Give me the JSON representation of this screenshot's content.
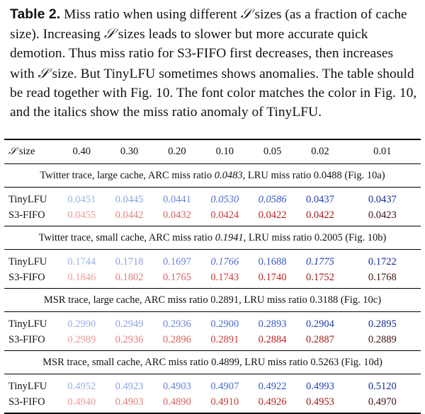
{
  "caption": {
    "label": "Table 2.",
    "parts": [
      " Miss ratio when using different ",
      " sizes (as a fraction of cache size). Increasing ",
      " sizes leads to slower but more accurate quick demotion. Thus miss ratio for S3-FIFO first decreases, then increases with ",
      " size. But TinyLFU sometimes shows anomalies. The table should be read together with Fig. 10. The font color matches the color in Fig. 10, and the italics show the miss ratio anomaly of TinyLFU."
    ],
    "symbol": "𝒮"
  },
  "header": {
    "symbol": "𝒮",
    "size_label": " size",
    "columns": [
      "0.40",
      "0.30",
      "0.20",
      "0.10",
      "0.05",
      "0.02",
      "0.01"
    ]
  },
  "sections": [
    {
      "title_a": "Twitter trace, large cache, ARC miss ratio ",
      "arc": "0.0483",
      "title_b": ", LRU miss ratio 0.0488 (Fig. 10a)",
      "rows": [
        {
          "label": "TinyLFU",
          "values": [
            "0.0451",
            "0.0445",
            "0.0441",
            "0.0530",
            "0.0586",
            "0.0437",
            "0.0437"
          ]
        },
        {
          "label": "S3-FIFO",
          "values": [
            "0.0455",
            "0.0442",
            "0.0432",
            "0.0424",
            "0.0422",
            "0.0422",
            "0.0423"
          ]
        }
      ]
    },
    {
      "title_a": "Twitter trace, small cache, ARC miss ratio ",
      "arc": "0.1941",
      "title_b": ", LRU miss ratio 0.2005 (Fig. 10b)",
      "rows": [
        {
          "label": "TinyLFU",
          "values": [
            "0.1744",
            "0.1718",
            "0.1697",
            "0.1766",
            "0.1688",
            "0.1775",
            "0.1722"
          ]
        },
        {
          "label": "S3-FIFO",
          "values": [
            "0.1846",
            "0.1802",
            "0.1765",
            "0.1743",
            "0.1740",
            "0.1752",
            "0.1768"
          ]
        }
      ]
    },
    {
      "title_a": "MSR trace, large cache, ARC miss ratio ",
      "arc": "0.2891",
      "title_b": ", LRU miss ratio 0.3188 (Fig. 10c)",
      "rows": [
        {
          "label": "TinyLFU",
          "values": [
            "0.2990",
            "0.2949",
            "0.2936",
            "0.2900",
            "0.2893",
            "0.2904",
            "0.2895"
          ]
        },
        {
          "label": "S3-FIFO",
          "values": [
            "0.2989",
            "0.2936",
            "0.2896",
            "0.2891",
            "0.2884",
            "0.2887",
            "0.2889"
          ]
        }
      ]
    },
    {
      "title_a": "MSR trace, small cache, ARC miss ratio ",
      "arc": "0.4899",
      "title_b": ", LRU miss ratio 0.5263 (Fig. 10d)",
      "rows": [
        {
          "label": "TinyLFU",
          "values": [
            "0.4952",
            "0.4923",
            "0.4903",
            "0.4907",
            "0.4922",
            "0.4993",
            "0.5120"
          ]
        },
        {
          "label": "S3-FIFO",
          "values": [
            "0.4940",
            "0.4903",
            "0.4890",
            "0.4910",
            "0.4926",
            "0.4953",
            "0.4970"
          ]
        }
      ]
    }
  ]
}
